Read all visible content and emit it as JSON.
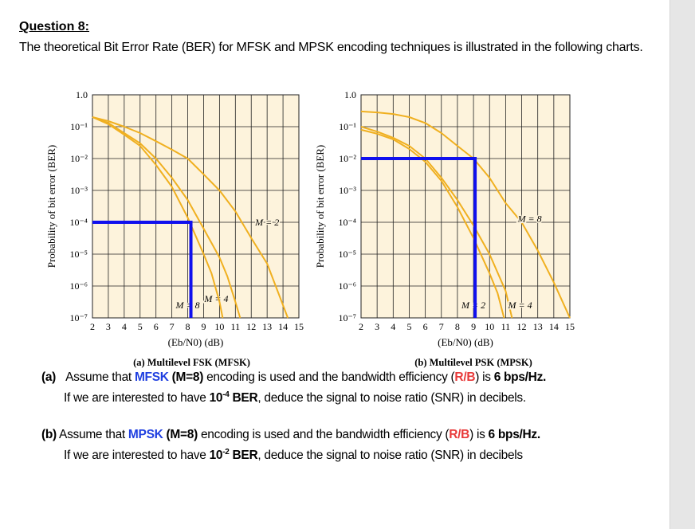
{
  "question": {
    "title": "Question 8:",
    "intro": "The theoretical Bit Error Rate (BER) for MFSK and MPSK encoding techniques is illustrated in the following charts."
  },
  "parts": [
    {
      "label": "(a)",
      "t1": "Assume that ",
      "scheme": "MFSK",
      "t2": " (M=8)",
      "t3": " encoding is used and the bandwidth efficiency (",
      "rb": "R/B",
      "t4": ") is ",
      "eff": "6 bps/Hz.",
      "l2a": "If we are interested to have ",
      "ber_base": "10",
      "ber_exp": "-4",
      "ber_word": " BER",
      "l2b": ", deduce the signal to noise ratio (SNR) in decibels."
    },
    {
      "label": "(b)",
      "t1": " Assume that ",
      "scheme": "MPSK",
      "t2": " (M=8)",
      "t3": " encoding is used and the bandwidth efficiency (",
      "rb": "R/B",
      "t4": ") is ",
      "eff": "6 bps/Hz.",
      "l2a": "If we are interested to have ",
      "ber_base": "10",
      "ber_exp": "-2",
      "ber_word": " BER",
      "l2b": ", deduce the signal to noise ratio (SNR) in decibels"
    }
  ],
  "colors": {
    "curve": "#f0b020",
    "marker": "#1010ee",
    "plot_bg": "#fdf3dc",
    "grid": "#222222",
    "highlight_blue": "#1f3fe0",
    "highlight_red": "#e83a3a"
  },
  "chart_data": [
    {
      "type": "line",
      "yscale": "log",
      "grid": true,
      "caption": "(a) Multilevel FSK (MFSK)",
      "xlabel": "(Eb/N0) (dB)",
      "ylabel": "Probability of bit error (BER)",
      "xlim": [
        2,
        15
      ],
      "ylim": [
        1e-07,
        1.0
      ],
      "xticks": [
        "2",
        "3",
        "4",
        "5",
        "6",
        "7",
        "8",
        "9",
        "10",
        "11",
        "12",
        "13",
        "14",
        "15"
      ],
      "yticks": [
        "1.0",
        "10⁻¹",
        "10⁻²",
        "10⁻³",
        "10⁻⁴",
        "10⁻⁵",
        "10⁻⁶",
        "10⁻⁷"
      ],
      "series": [
        {
          "name": "M = 2",
          "x": [
            2,
            3,
            4,
            5,
            6,
            7,
            8,
            9,
            10,
            11,
            12,
            13,
            14,
            14.3
          ],
          "y": [
            0.2,
            0.15,
            0.1,
            0.063,
            0.035,
            0.019,
            0.01,
            0.0032,
            0.001,
            0.00022,
            3.2e-05,
            5e-06,
            2.5e-07,
            1e-07
          ]
        },
        {
          "name": "M = 4",
          "x": [
            2,
            3,
            4,
            5,
            6,
            7,
            8,
            9,
            10,
            10.5,
            11,
            11.3
          ],
          "y": [
            0.2,
            0.13,
            0.063,
            0.03,
            0.01,
            0.0025,
            0.0005,
            6.3e-05,
            7.9e-06,
            2e-06,
            3.2e-07,
            1e-07
          ]
        },
        {
          "name": "M = 8",
          "x": [
            2,
            3,
            4,
            5,
            6,
            7,
            8,
            9,
            9.5,
            10,
            10.2
          ],
          "y": [
            0.2,
            0.12,
            0.056,
            0.025,
            0.0063,
            0.0013,
            0.00014,
            1e-05,
            2.5e-06,
            3.2e-07,
            1e-07
          ]
        }
      ],
      "markers": {
        "ber": 0.0001,
        "ebn0": 8.2
      }
    },
    {
      "type": "line",
      "yscale": "log",
      "grid": true,
      "caption": "(b) Multilevel PSK (MPSK)",
      "xlabel": "(Eb/N0) (dB)",
      "ylabel": "Probability of bit error (BER)",
      "xlim": [
        2,
        15
      ],
      "ylim": [
        1e-07,
        1.0
      ],
      "xticks": [
        "2",
        "3",
        "4",
        "5",
        "6",
        "7",
        "8",
        "9",
        "10",
        "11",
        "12",
        "13",
        "14",
        "15"
      ],
      "yticks": [
        "1.0",
        "10⁻¹",
        "10⁻²",
        "10⁻³",
        "10⁻⁴",
        "10⁻⁵",
        "10⁻⁶",
        "10⁻⁷"
      ],
      "series": [
        {
          "name": "M = 2",
          "x": [
            2,
            3,
            4,
            5,
            6,
            7,
            8,
            9,
            10,
            10.5,
            10.9
          ],
          "y": [
            0.08,
            0.06,
            0.04,
            0.02,
            0.0079,
            0.002,
            0.0003,
            3.2e-05,
            2.5e-06,
            6e-07,
            1e-07
          ]
        },
        {
          "name": "M = 4",
          "x": [
            2,
            3,
            4,
            5,
            6,
            7,
            8,
            9,
            10,
            11,
            11.4
          ],
          "y": [
            0.1,
            0.07,
            0.045,
            0.025,
            0.01,
            0.0025,
            0.0005,
            7.9e-05,
            1e-05,
            7e-07,
            1e-07
          ]
        },
        {
          "name": "M = 8",
          "x": [
            2,
            3,
            4,
            5,
            6,
            7,
            8,
            9,
            10,
            11,
            12,
            13,
            14,
            15
          ],
          "y": [
            0.3,
            0.28,
            0.25,
            0.2,
            0.13,
            0.063,
            0.025,
            0.01,
            0.0025,
            0.0004,
            0.0001,
            1.3e-05,
            1.3e-06,
            1e-07
          ]
        }
      ],
      "markers": {
        "ber": 0.01,
        "ebn0": 9.1
      }
    }
  ]
}
